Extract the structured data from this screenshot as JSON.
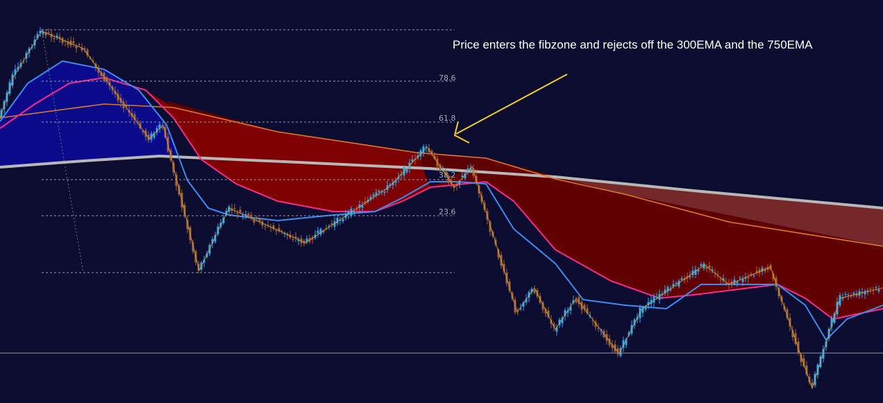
{
  "annotation": "Price enters the fibzone and rejects off the 300EMA and the 750EMA",
  "fib_levels": [
    "78.6",
    "61.8",
    "38.2",
    "23.6"
  ]
}
